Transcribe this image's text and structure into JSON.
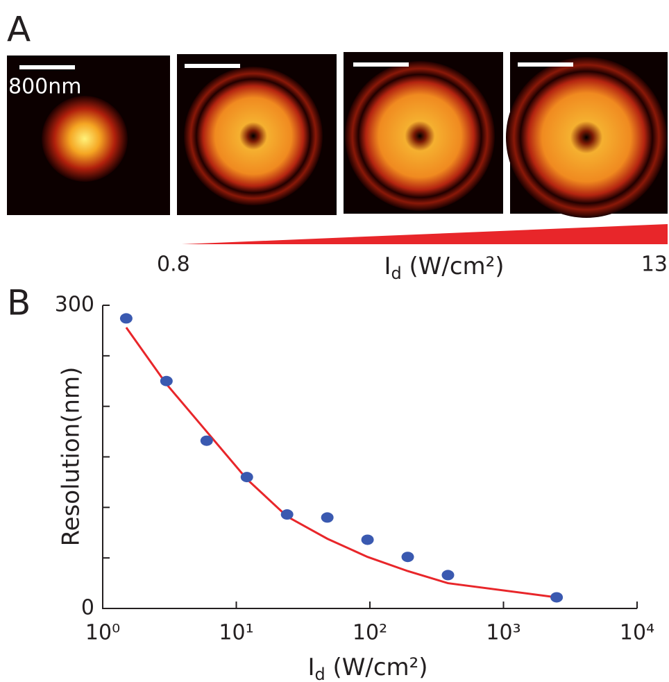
{
  "panel_a": {
    "label": "A",
    "scale_bar": "800nm",
    "intensity": {
      "min": 0.8,
      "max": 13,
      "symbol": "I",
      "subscript": "d",
      "unit": " (W/cm²)"
    }
  },
  "chart_data": {
    "type": "scatter",
    "panel_label": "B",
    "y_label": "Resolution(nm)",
    "x_label": {
      "symbol": "I",
      "subscript": "d",
      "unit": " (W/cm²)"
    },
    "log_x": true,
    "xlim": [
      1,
      10000
    ],
    "xticks": [
      {
        "value": 1,
        "label": "10⁰"
      },
      {
        "value": 10,
        "label": "10¹"
      },
      {
        "value": 100,
        "label": "10²"
      },
      {
        "value": 1000,
        "label": "10³"
      },
      {
        "value": 10000,
        "label": "10⁴"
      }
    ],
    "ylim": [
      0,
      300
    ],
    "yticks": [
      0,
      300
    ],
    "yminor_ticks": [
      50,
      100,
      150,
      200,
      250
    ],
    "series": [
      {
        "kind": "points",
        "color": "#3a59b0",
        "x": [
          1.5,
          3,
          6,
          12,
          24,
          48,
          96,
          192,
          384,
          2500
        ],
        "values": [
          287,
          225,
          166,
          130,
          93,
          90,
          68,
          51,
          33,
          11
        ]
      },
      {
        "kind": "fit",
        "color": "#e8262a",
        "x": [
          1.5,
          3,
          6,
          12,
          24,
          48,
          96,
          192,
          384,
          2500
        ],
        "values": [
          278,
          222,
          175,
          128,
          91,
          69,
          51,
          37,
          25,
          11
        ]
      }
    ]
  }
}
